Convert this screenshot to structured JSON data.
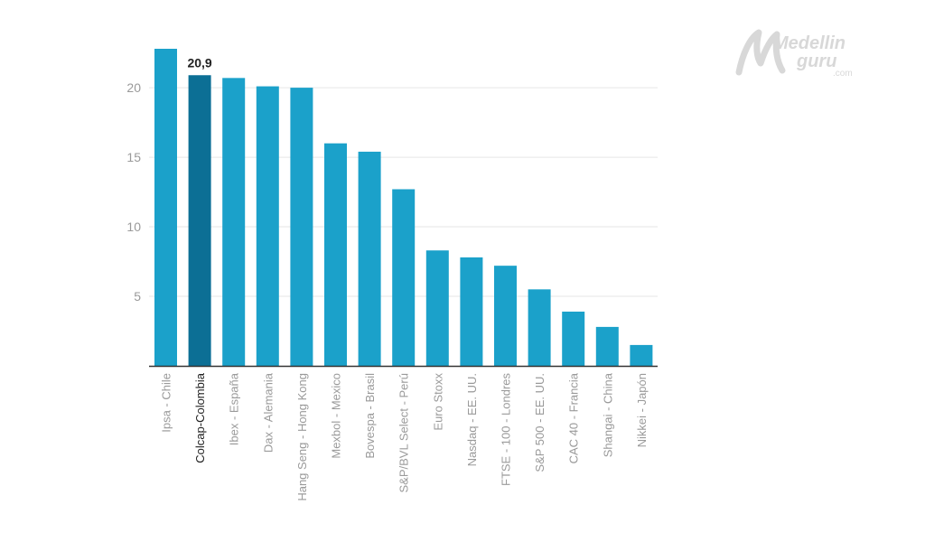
{
  "logo": {
    "line1": "Medellin",
    "line2": "guru",
    "line3": ".com"
  },
  "chart_data": {
    "type": "bar",
    "title": "",
    "xlabel": "",
    "ylabel": "",
    "ylim": [
      0,
      22.8
    ],
    "yticks": [
      5,
      10,
      15,
      20
    ],
    "grid": true,
    "categories": [
      "Ipsa - Chile",
      "Colcap-Colombia",
      "Ibex - España",
      "Dax - Alemania",
      "Hang Seng - Hong Kong",
      "Mexbol - Mexico",
      "Bovespa - Brasil",
      "S&P/BVL Select - Perú",
      "Euro Stoxx",
      "Nasdaq - EE. UU.",
      "FTSE - 100 - Londres",
      "S&P 500 - EE. UU.",
      "CAC 40 - Francia",
      "Shangai - China",
      "Nikkei - Japón"
    ],
    "values": [
      22.8,
      20.9,
      20.7,
      20.1,
      20.0,
      16.0,
      15.4,
      12.7,
      8.3,
      7.8,
      7.2,
      5.5,
      3.9,
      2.8,
      1.5
    ],
    "highlight_index": 1,
    "highlight_label": "20,9",
    "colors": {
      "bar": "#1ba1ca",
      "highlight": "#0c6f95",
      "axis": "#333333",
      "grid": "#e6e6e6",
      "tick_label": "#9a9a9a",
      "category_label": "#9a9a9a",
      "highlight_text": "#222222"
    }
  }
}
